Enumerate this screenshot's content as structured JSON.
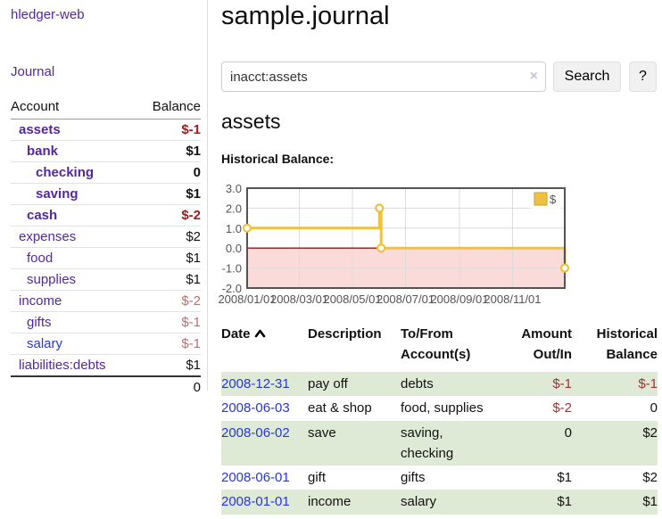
{
  "app": {
    "brand": "hledger-web",
    "nav_journal": "Journal"
  },
  "header": {
    "title": "sample.journal"
  },
  "search": {
    "value": "inacct:assets",
    "clear_icon": "×",
    "button_label": "Search",
    "help_label": "?"
  },
  "account_page": {
    "heading": "assets",
    "chart_title": "Historical Balance:"
  },
  "sidebar": {
    "header": {
      "account": "Account",
      "balance": "Balance"
    },
    "accounts": [
      {
        "name": "assets",
        "balance": "$-1"
      },
      {
        "name": "bank",
        "balance": "$1"
      },
      {
        "name": "checking",
        "balance": "0"
      },
      {
        "name": "saving",
        "balance": "$1"
      },
      {
        "name": "cash",
        "balance": "$-2"
      },
      {
        "name": "expenses",
        "balance": "$2"
      },
      {
        "name": "food",
        "balance": "$1"
      },
      {
        "name": "supplies",
        "balance": "$1"
      },
      {
        "name": "income",
        "balance": "$-2"
      },
      {
        "name": "gifts",
        "balance": "$-1"
      },
      {
        "name": "salary",
        "balance": "$-1"
      },
      {
        "name": "liabilities:debts",
        "balance": "$1"
      }
    ],
    "total": "0"
  },
  "chart_data": {
    "type": "line",
    "step": true,
    "title": "Historical Balance:",
    "legend": {
      "label": "$",
      "position": "top-right"
    },
    "series": [
      {
        "name": "$",
        "color": "#edc240",
        "points": [
          {
            "date": "2008-01-01",
            "x": 0,
            "y": 1
          },
          {
            "date": "2008-06-01",
            "x": 152,
            "y": 2
          },
          {
            "date": "2008-06-03",
            "x": 154,
            "y": 0
          },
          {
            "date": "2008-12-31",
            "x": 365,
            "y": -1
          }
        ]
      }
    ],
    "x_range_days": 365,
    "x_ticks": [
      {
        "x": 0,
        "label": "2008/01/01"
      },
      {
        "x": 60,
        "label": "2008/03/01"
      },
      {
        "x": 121,
        "label": "2008/05/01"
      },
      {
        "x": 182,
        "label": "2008/07/01"
      },
      {
        "x": 244,
        "label": "2008/09/01"
      },
      {
        "x": 305,
        "label": "2008/11/01"
      }
    ],
    "y_ticks": [
      "3.0",
      "2.0",
      "1.0",
      "0.0",
      "-1.0",
      "-2.0"
    ],
    "ylim": [
      -2,
      3
    ],
    "grid": true,
    "colors": {
      "line": "#edc240",
      "line_border": "#cda328",
      "grid": "#dcdcdc",
      "border": "#545454",
      "zero_line": "#8c1717",
      "negative_fill": "#fbdada"
    }
  },
  "transactions": {
    "columns": {
      "date": "Date",
      "description": "Description",
      "accounts": "To/From Account(s)",
      "amount": "Amount Out/In",
      "balance": "Historical Balance"
    },
    "rows": [
      {
        "date": "2008-12-31",
        "description": "pay off",
        "accounts": "debts",
        "amount": "$-1",
        "balance": "$-1"
      },
      {
        "date": "2008-06-03",
        "description": "eat & shop",
        "accounts": "food, supplies",
        "amount": "$-2",
        "balance": "0"
      },
      {
        "date": "2008-06-02",
        "description": "save",
        "accounts": "saving, checking",
        "amount": "0",
        "balance": "$2"
      },
      {
        "date": "2008-06-01",
        "description": "gift",
        "accounts": "gifts",
        "amount": "$1",
        "balance": "$2"
      },
      {
        "date": "2008-01-01",
        "description": "income",
        "accounts": "salary",
        "amount": "$1",
        "balance": "$1"
      }
    ]
  }
}
